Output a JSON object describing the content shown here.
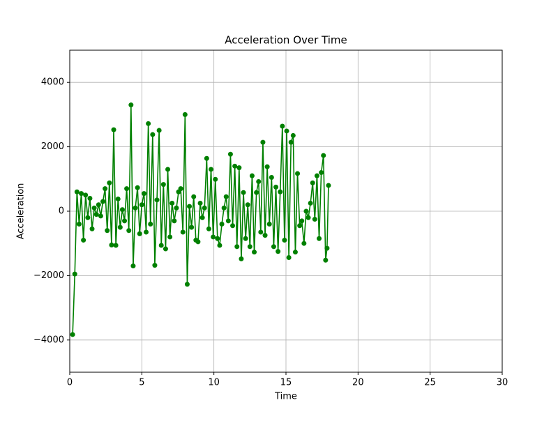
{
  "chart_data": {
    "type": "line",
    "title": "Acceleration Over Time",
    "x_label": "Time",
    "y_label": "Acceleration",
    "x": [
      0.2,
      0.35,
      0.5,
      0.65,
      0.8,
      0.95,
      1.1,
      1.25,
      1.4,
      1.55,
      1.7,
      1.85,
      2.0,
      2.15,
      2.3,
      2.45,
      2.6,
      2.75,
      2.9,
      3.05,
      3.2,
      3.35,
      3.5,
      3.65,
      3.8,
      3.95,
      4.1,
      4.25,
      4.4,
      4.55,
      4.7,
      4.85,
      5.0,
      5.15,
      5.3,
      5.45,
      5.6,
      5.75,
      5.9,
      6.05,
      6.2,
      6.35,
      6.5,
      6.65,
      6.8,
      6.95,
      7.1,
      7.25,
      7.4,
      7.55,
      7.7,
      7.85,
      8.0,
      8.15,
      8.3,
      8.45,
      8.6,
      8.75,
      8.9,
      9.05,
      9.2,
      9.35,
      9.5,
      9.65,
      9.8,
      9.95,
      10.1,
      10.25,
      10.4,
      10.55,
      10.7,
      10.85,
      11.0,
      11.15,
      11.3,
      11.45,
      11.6,
      11.75,
      11.9,
      12.05,
      12.2,
      12.35,
      12.5,
      12.65,
      12.8,
      12.95,
      13.1,
      13.25,
      13.4,
      13.55,
      13.7,
      13.85,
      14.0,
      14.15,
      14.3,
      14.45,
      14.6,
      14.75,
      14.9,
      15.05,
      15.2,
      15.35,
      15.5,
      15.65,
      15.8,
      15.95,
      16.1,
      16.25,
      16.4,
      16.55,
      16.7,
      16.85,
      17.0,
      17.15,
      17.3,
      17.45,
      17.6,
      17.75,
      17.85,
      17.95
    ],
    "series": [
      {
        "color": "#008000",
        "values": [
          -3830,
          -1950,
          600,
          -400,
          550,
          -900,
          500,
          -200,
          400,
          -550,
          100,
          -100,
          200,
          -150,
          300,
          700,
          -600,
          880,
          -1050,
          2530,
          -1060,
          380,
          -500,
          50,
          -300,
          700,
          -600,
          3300,
          -1700,
          100,
          730,
          -700,
          200,
          550,
          -650,
          2720,
          -400,
          2380,
          -1680,
          350,
          2510,
          -1060,
          830,
          -1170,
          1300,
          -800,
          250,
          -300,
          100,
          600,
          700,
          -650,
          3000,
          -2270,
          150,
          -500,
          450,
          -900,
          -950,
          250,
          -200,
          100,
          1640,
          -550,
          1300,
          -800,
          990,
          -850,
          -1060,
          -400,
          100,
          450,
          -300,
          1770,
          -450,
          1400,
          -1100,
          1350,
          -1480,
          580,
          -850,
          200,
          -1100,
          1100,
          -1270,
          580,
          920,
          -650,
          2140,
          -750,
          1380,
          -400,
          1050,
          -1100,
          750,
          -1250,
          600,
          2640,
          -900,
          2490,
          -1440,
          2140,
          2350,
          -1270,
          1170,
          -450,
          -300,
          -1000,
          0,
          -200,
          250,
          880,
          -250,
          1100,
          -850,
          1200,
          1730,
          -1520,
          -1150,
          800
        ]
      }
    ],
    "xlim": [
      0,
      30
    ],
    "xticks": [
      0,
      5,
      10,
      15,
      20,
      25,
      30
    ],
    "ylim": [
      -5000,
      5000
    ],
    "yticks": [
      {
        "value": -4000,
        "label": "−4000"
      },
      {
        "value": -2000,
        "label": "−2000"
      },
      0,
      2000,
      4000
    ],
    "grid": true
  }
}
